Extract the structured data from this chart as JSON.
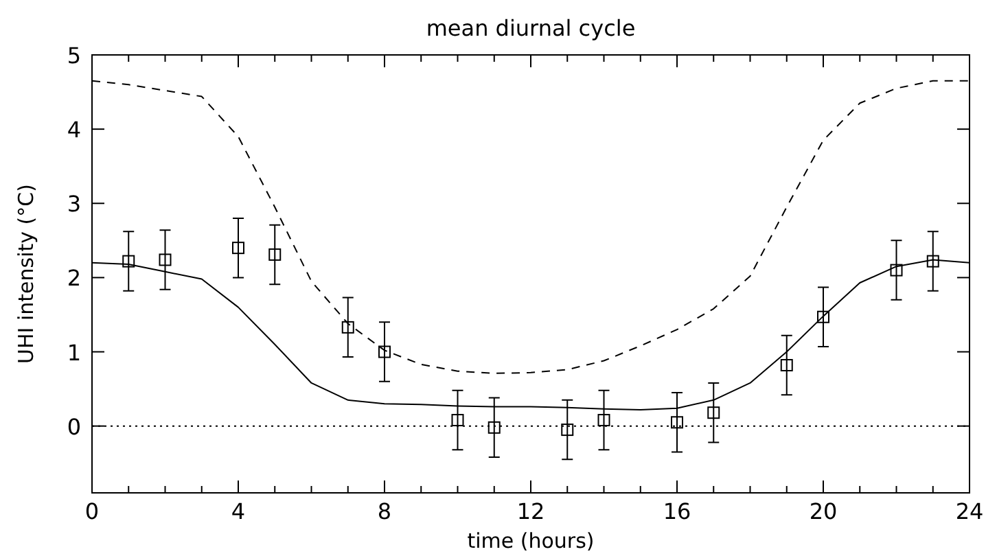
{
  "chart_data": {
    "type": "line",
    "title": "mean diurnal cycle",
    "xlabel": "time (hours)",
    "ylabel": "UHI intensity (°C)",
    "xlim": [
      0,
      24
    ],
    "ylim": [
      -0.9,
      5
    ],
    "xticks": [
      0,
      {
        "value": 1,
        "label": null
      },
      {
        "value": 2,
        "label": null
      },
      {
        "value": 3,
        "label": null
      },
      4,
      {
        "value": 5,
        "label": null
      },
      {
        "value": 6,
        "label": null
      },
      {
        "value": 7,
        "label": null
      },
      8,
      {
        "value": 9,
        "label": null
      },
      {
        "value": 10,
        "label": null
      },
      {
        "value": 11,
        "label": null
      },
      12,
      {
        "value": 13,
        "label": null
      },
      {
        "value": 14,
        "label": null
      },
      {
        "value": 15,
        "label": null
      },
      16,
      {
        "value": 17,
        "label": null
      },
      {
        "value": 18,
        "label": null
      },
      {
        "value": 19,
        "label": null
      },
      20,
      {
        "value": 21,
        "label": null
      },
      {
        "value": 22,
        "label": null
      },
      {
        "value": 23,
        "label": null
      },
      24
    ],
    "yticks": [
      0,
      1,
      2,
      3,
      4,
      5
    ],
    "grid": false,
    "ref_lines": [
      {
        "axis": "y",
        "value": 0,
        "line_style": "dotted",
        "color": "#000000"
      }
    ],
    "series": [
      {
        "color": "#000000",
        "line_style": "dashed",
        "marker": "none",
        "x": [
          0,
          1,
          2,
          3,
          4,
          5,
          6,
          7,
          8,
          9,
          10,
          11,
          12,
          13,
          14,
          15,
          16,
          17,
          18,
          19,
          20,
          21,
          22,
          23,
          24
        ],
        "values": [
          4.65,
          4.6,
          4.52,
          4.44,
          3.9,
          2.95,
          1.95,
          1.38,
          1.02,
          0.83,
          0.74,
          0.71,
          0.72,
          0.76,
          0.88,
          1.08,
          1.3,
          1.58,
          2.02,
          2.95,
          3.85,
          4.35,
          4.55,
          4.65,
          4.65
        ]
      },
      {
        "color": "#000000",
        "line_style": "solid",
        "marker": "none",
        "x": [
          0,
          1,
          2,
          3,
          4,
          5,
          6,
          7,
          8,
          9,
          10,
          11,
          12,
          13,
          14,
          15,
          16,
          17,
          18,
          19,
          20,
          21,
          22,
          23,
          24
        ],
        "values": [
          2.2,
          2.18,
          2.08,
          1.98,
          1.6,
          1.1,
          0.58,
          0.35,
          0.3,
          0.29,
          0.27,
          0.26,
          0.26,
          0.25,
          0.23,
          0.22,
          0.24,
          0.35,
          0.58,
          1.0,
          1.48,
          1.93,
          2.15,
          2.24,
          2.2
        ]
      },
      {
        "type": "scatter",
        "color": "#000000",
        "marker": "square",
        "x": [
          1,
          2,
          4,
          5,
          7,
          8,
          10,
          11,
          13,
          14,
          16,
          17,
          19,
          20,
          22,
          23
        ],
        "values": [
          2.22,
          2.24,
          2.4,
          2.31,
          1.33,
          1.0,
          0.08,
          -0.02,
          -0.05,
          0.08,
          0.05,
          0.18,
          0.82,
          1.47,
          2.1,
          2.22
        ],
        "errors": [
          0.4,
          0.4,
          0.4,
          0.4,
          0.4,
          0.4,
          0.4,
          0.4,
          0.4,
          0.4,
          0.4,
          0.4,
          0.4,
          0.4,
          0.4,
          0.4
        ]
      }
    ]
  }
}
